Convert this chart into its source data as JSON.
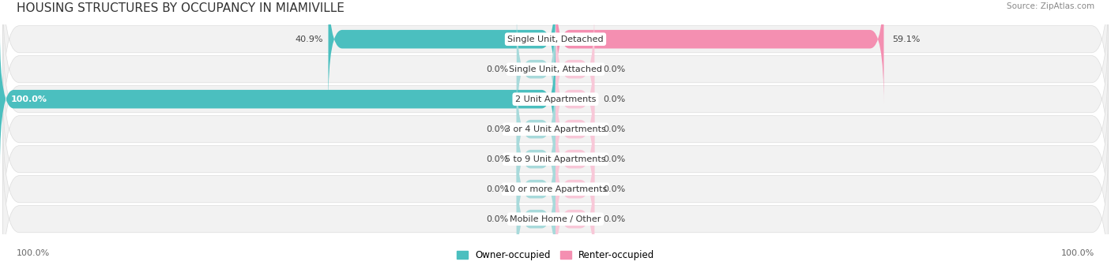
{
  "title": "HOUSING STRUCTURES BY OCCUPANCY IN MIAMIVILLE",
  "source": "Source: ZipAtlas.com",
  "categories": [
    "Single Unit, Detached",
    "Single Unit, Attached",
    "2 Unit Apartments",
    "3 or 4 Unit Apartments",
    "5 to 9 Unit Apartments",
    "10 or more Apartments",
    "Mobile Home / Other"
  ],
  "owner_values": [
    40.9,
    0.0,
    100.0,
    0.0,
    0.0,
    0.0,
    0.0
  ],
  "renter_values": [
    59.1,
    0.0,
    0.0,
    0.0,
    0.0,
    0.0,
    0.0
  ],
  "owner_color": "#4BBFBF",
  "renter_color": "#F48FB1",
  "owner_placeholder_color": "#A8DADB",
  "renter_placeholder_color": "#F8C8D8",
  "row_bg_color": "#F0F0F0",
  "row_alt_bg_color": "#E8E8E8",
  "title_fontsize": 11,
  "label_fontsize": 8.0,
  "axis_label_fontsize": 8,
  "legend_fontsize": 8.5,
  "background_color": "#FFFFFF",
  "x_left_label": "100.0%",
  "x_right_label": "100.0%",
  "placeholder_size": 7.0
}
